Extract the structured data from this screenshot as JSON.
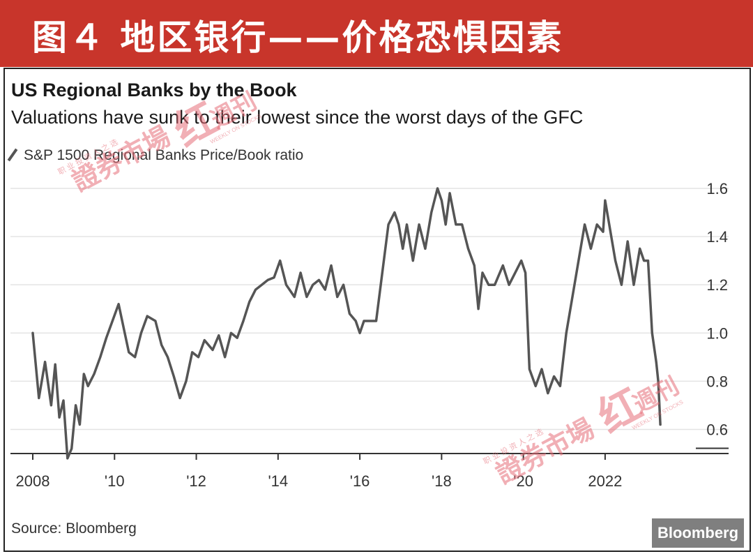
{
  "banner": {
    "title": "图４  地区银行——价格恐惧因素",
    "color": "#c8352b"
  },
  "chart_data": {
    "type": "line",
    "title": "US Regional Banks by the Book",
    "subtitle": "Valuations have sunk to their lowest since the worst days of the GFC",
    "legend": [
      {
        "label": "S&P 1500 Regional Banks Price/Book ratio",
        "color": "#555555"
      }
    ],
    "x_tick_labels": [
      "2008",
      "'10",
      "'12",
      "'14",
      "'16",
      "'18",
      "'20",
      "2022"
    ],
    "y_tick_labels": [
      "1.6",
      "1.4",
      "1.2",
      "1.0",
      "0.8",
      "0.6"
    ],
    "y_axis_side": "right",
    "xlim": [
      2008.0,
      2023.4
    ],
    "ylim": [
      0.5,
      1.6
    ],
    "grid": true,
    "series": [
      {
        "color": "#555555",
        "x": [
          2008.0,
          2008.15,
          2008.3,
          2008.45,
          2008.55,
          2008.65,
          2008.75,
          2008.85,
          2008.95,
          2009.05,
          2009.15,
          2009.25,
          2009.35,
          2009.5,
          2009.65,
          2009.8,
          2009.95,
          2010.1,
          2010.25,
          2010.35,
          2010.5,
          2010.65,
          2010.8,
          2011.0,
          2011.15,
          2011.3,
          2011.45,
          2011.6,
          2011.75,
          2011.9,
          2012.05,
          2012.2,
          2012.4,
          2012.55,
          2012.7,
          2012.85,
          2013.0,
          2013.15,
          2013.3,
          2013.45,
          2013.6,
          2013.75,
          2013.9,
          2014.05,
          2014.2,
          2014.4,
          2014.55,
          2014.7,
          2014.85,
          2015.0,
          2015.15,
          2015.3,
          2015.45,
          2015.6,
          2015.75,
          2015.9,
          2016.0,
          2016.1,
          2016.25,
          2016.4,
          2016.55,
          2016.7,
          2016.85,
          2016.95,
          2017.05,
          2017.15,
          2017.3,
          2017.45,
          2017.6,
          2017.75,
          2017.9,
          2018.0,
          2018.1,
          2018.2,
          2018.35,
          2018.5,
          2018.65,
          2018.8,
          2018.9,
          2019.0,
          2019.15,
          2019.3,
          2019.5,
          2019.65,
          2019.8,
          2019.95,
          2020.05,
          2020.15,
          2020.3,
          2020.45,
          2020.6,
          2020.75,
          2020.9,
          2021.05,
          2021.2,
          2021.35,
          2021.5,
          2021.65,
          2021.8,
          2021.95,
          2022.0,
          2022.1,
          2022.25,
          2022.4,
          2022.55,
          2022.7,
          2022.85,
          2022.95,
          2023.05,
          2023.15,
          2023.25,
          2023.3,
          2023.35
        ],
        "y": [
          1.0,
          0.73,
          0.88,
          0.7,
          0.87,
          0.65,
          0.72,
          0.48,
          0.52,
          0.7,
          0.62,
          0.83,
          0.78,
          0.83,
          0.9,
          0.98,
          1.05,
          1.12,
          1.0,
          0.92,
          0.9,
          1.0,
          1.07,
          1.05,
          0.95,
          0.9,
          0.82,
          0.73,
          0.8,
          0.92,
          0.9,
          0.97,
          0.93,
          0.99,
          0.9,
          1.0,
          0.98,
          1.05,
          1.13,
          1.18,
          1.2,
          1.22,
          1.23,
          1.3,
          1.2,
          1.15,
          1.25,
          1.15,
          1.2,
          1.22,
          1.18,
          1.28,
          1.15,
          1.2,
          1.08,
          1.05,
          1.0,
          1.05,
          1.05,
          1.05,
          1.25,
          1.45,
          1.5,
          1.45,
          1.35,
          1.45,
          1.3,
          1.45,
          1.35,
          1.5,
          1.6,
          1.55,
          1.45,
          1.58,
          1.45,
          1.45,
          1.35,
          1.28,
          1.1,
          1.25,
          1.2,
          1.2,
          1.28,
          1.2,
          1.25,
          1.3,
          1.25,
          0.85,
          0.78,
          0.85,
          0.75,
          0.82,
          0.78,
          1.0,
          1.15,
          1.3,
          1.45,
          1.35,
          1.45,
          1.42,
          1.55,
          1.45,
          1.3,
          1.2,
          1.38,
          1.2,
          1.35,
          1.3,
          1.3,
          1.0,
          0.88,
          0.8,
          0.62
        ]
      }
    ],
    "source": "Source: Bloomberg",
    "logo": "Bloomberg"
  },
  "watermark": {
    "text": "證券市場",
    "mark": "红",
    "suffix": "週刊",
    "tagline": "职 业 投 资 人 之 选",
    "english": "WEEKLY ON STOCKS"
  }
}
